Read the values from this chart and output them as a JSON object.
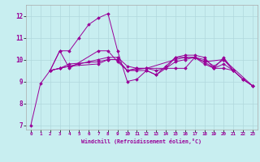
{
  "xlabel": "Windchill (Refroidissement éolien,°C)",
  "bg_color": "#c8eef0",
  "grid_color": "#b0d8dc",
  "line_color": "#990099",
  "xlim": [
    -0.5,
    23.5
  ],
  "ylim": [
    6.8,
    12.5
  ],
  "yticks": [
    7,
    8,
    9,
    10,
    11,
    12
  ],
  "xticks": [
    0,
    1,
    2,
    3,
    4,
    5,
    6,
    7,
    8,
    9,
    10,
    11,
    12,
    13,
    14,
    15,
    16,
    17,
    18,
    19,
    20,
    21,
    22,
    23
  ],
  "series": [
    [
      7.0,
      8.9,
      9.5,
      10.4,
      10.4,
      11.0,
      11.6,
      11.9,
      12.1,
      10.4,
      9.0,
      9.1,
      9.5,
      9.3,
      9.7,
      10.1,
      10.2,
      10.2,
      10.1,
      9.6,
      10.1,
      9.5,
      9.1,
      8.8
    ],
    [
      null,
      null,
      9.5,
      10.4,
      9.6,
      null,
      null,
      10.4,
      10.4,
      9.9,
      9.5,
      null,
      9.6,
      null,
      null,
      10.0,
      10.1,
      10.1,
      9.9,
      null,
      10.0,
      null,
      null,
      8.8
    ],
    [
      null,
      null,
      9.5,
      9.6,
      9.7,
      null,
      null,
      9.8,
      10.0,
      10.0,
      9.5,
      9.6,
      9.6,
      null,
      9.6,
      9.6,
      9.6,
      10.1,
      9.9,
      9.6,
      9.6,
      9.5,
      null,
      null
    ],
    [
      null,
      null,
      9.5,
      9.6,
      9.8,
      null,
      null,
      9.9,
      10.0,
      10.0,
      9.5,
      9.5,
      9.5,
      9.3,
      9.6,
      10.1,
      10.1,
      10.1,
      9.8,
      9.6,
      9.8,
      9.5,
      9.1,
      8.8
    ],
    [
      null,
      null,
      9.5,
      9.6,
      9.7,
      9.8,
      9.9,
      10.0,
      10.1,
      10.1,
      9.7,
      9.6,
      9.6,
      9.5,
      9.6,
      9.9,
      10.0,
      10.1,
      10.0,
      9.7,
      10.0,
      9.5,
      9.1,
      8.8
    ]
  ]
}
